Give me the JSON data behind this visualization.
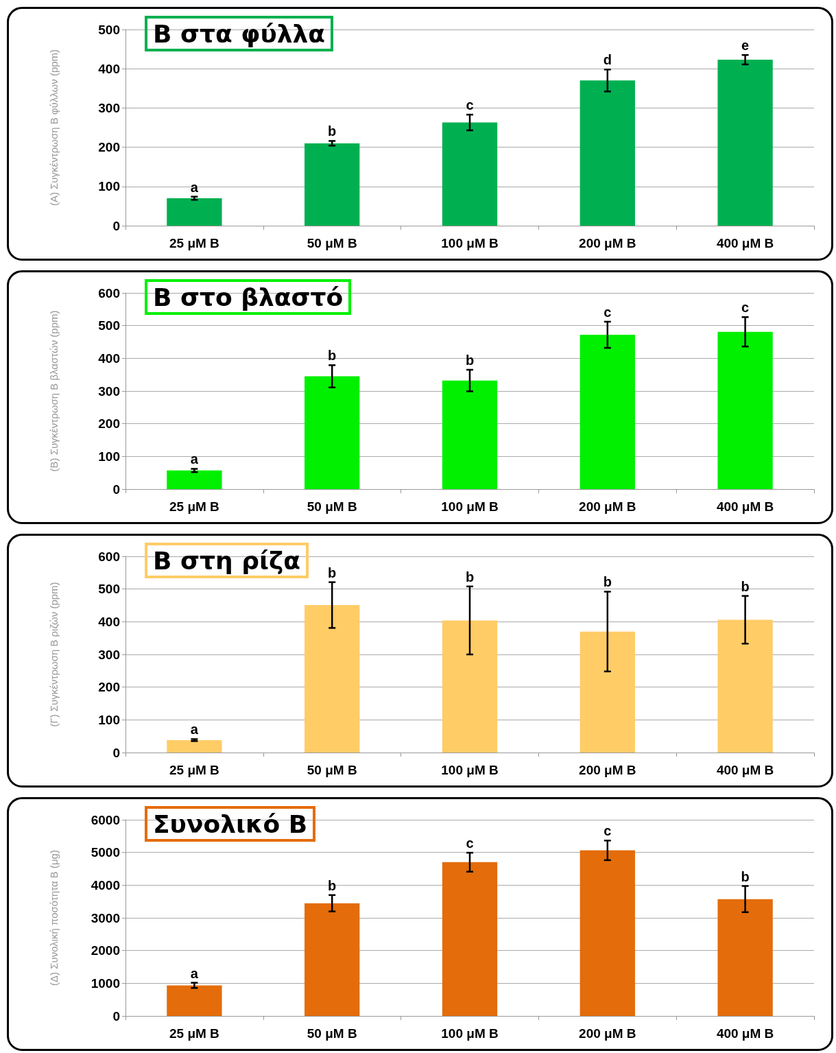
{
  "chart_data": [
    {
      "type": "bar",
      "title": "Β στα φύλλα",
      "ylabel": "(Α) Συγκέντρωση Β φύλλων (ppm)",
      "categories": [
        "25 μM B",
        "50 μM B",
        "100 μM B",
        "200 μM B",
        "400 μM B"
      ],
      "color": "#00b050",
      "values": [
        70,
        210,
        263,
        370,
        423
      ],
      "errors": [
        4,
        6,
        20,
        28,
        12
      ],
      "ylim": [
        0,
        500
      ],
      "yticks": [
        0,
        100,
        200,
        300,
        400,
        500
      ],
      "grid": "y",
      "annotations": [
        {
          "text": "a",
          "x": "25 μM B",
          "y": 74
        },
        {
          "text": "b",
          "x": "50 μM B",
          "y": 216
        },
        {
          "text": "c",
          "x": "100 μM B",
          "y": 283
        },
        {
          "text": "d",
          "x": "200 μM B",
          "y": 398
        },
        {
          "text": "e",
          "x": "400 μM B",
          "y": 435
        }
      ]
    },
    {
      "type": "bar",
      "title": "Β στο βλαστό",
      "ylabel": "(Β) Συγκέντρωση Β βλαστών (ppm)",
      "categories": [
        "25 μM B",
        "50 μM B",
        "100 μM B",
        "200 μM B",
        "400 μM B"
      ],
      "color": "#00f000",
      "values": [
        57,
        345,
        332,
        472,
        481
      ],
      "errors": [
        5,
        34,
        33,
        40,
        45
      ],
      "ylim": [
        0,
        600
      ],
      "yticks": [
        0,
        100,
        200,
        300,
        400,
        500,
        600
      ],
      "grid": "y",
      "annotations": [
        {
          "text": "a",
          "x": "25 μM B",
          "y": 62
        },
        {
          "text": "b",
          "x": "50 μM B",
          "y": 379
        },
        {
          "text": "b",
          "x": "100 μM B",
          "y": 365
        },
        {
          "text": "c",
          "x": "200 μM B",
          "y": 512
        },
        {
          "text": "c",
          "x": "400 μM B",
          "y": 526
        }
      ]
    },
    {
      "type": "bar",
      "title": "Β στη ρίζα",
      "ylabel": "(Γ) Συγκέντρωση Β ριζών (ppm)",
      "categories": [
        "25 μM B",
        "50 μM B",
        "100 μM B",
        "200 μM B",
        "400 μM B"
      ],
      "color": "#ffcc66",
      "values": [
        38,
        451,
        404,
        370,
        406
      ],
      "errors": [
        3,
        70,
        104,
        122,
        73
      ],
      "ylim": [
        0,
        600
      ],
      "yticks": [
        0,
        100,
        200,
        300,
        400,
        500,
        600
      ],
      "grid": "y",
      "annotations": [
        {
          "text": "a",
          "x": "25 μM B",
          "y": 41
        },
        {
          "text": "b",
          "x": "50 μM B",
          "y": 521
        },
        {
          "text": "b",
          "x": "100 μM B",
          "y": 508
        },
        {
          "text": "b",
          "x": "200 μM B",
          "y": 492
        },
        {
          "text": "b",
          "x": "400 μM B",
          "y": 479
        }
      ]
    },
    {
      "type": "bar",
      "title": "Συνολικό Β",
      "ylabel": "(Δ) Συνολική ποσότητα Β (μg)",
      "categories": [
        "25 μM B",
        "50 μM B",
        "100 μM B",
        "200 μM B",
        "400 μM B"
      ],
      "color": "#e46c0a",
      "values": [
        936,
        3447,
        4702,
        5064,
        3574
      ],
      "errors": [
        80,
        250,
        290,
        300,
        400
      ],
      "ylim": [
        0,
        6000
      ],
      "yticks": [
        0,
        1000,
        2000,
        3000,
        4000,
        5000,
        6000
      ],
      "grid": "y",
      "annotations": [
        {
          "text": "a",
          "x": "25 μM B",
          "y": 1016
        },
        {
          "text": "b",
          "x": "50 μM B",
          "y": 3697
        },
        {
          "text": "c",
          "x": "100 μM B",
          "y": 4992
        },
        {
          "text": "c",
          "x": "200 μM B",
          "y": 5364
        },
        {
          "text": "b",
          "x": "400 μM B",
          "y": 3974
        }
      ]
    }
  ]
}
